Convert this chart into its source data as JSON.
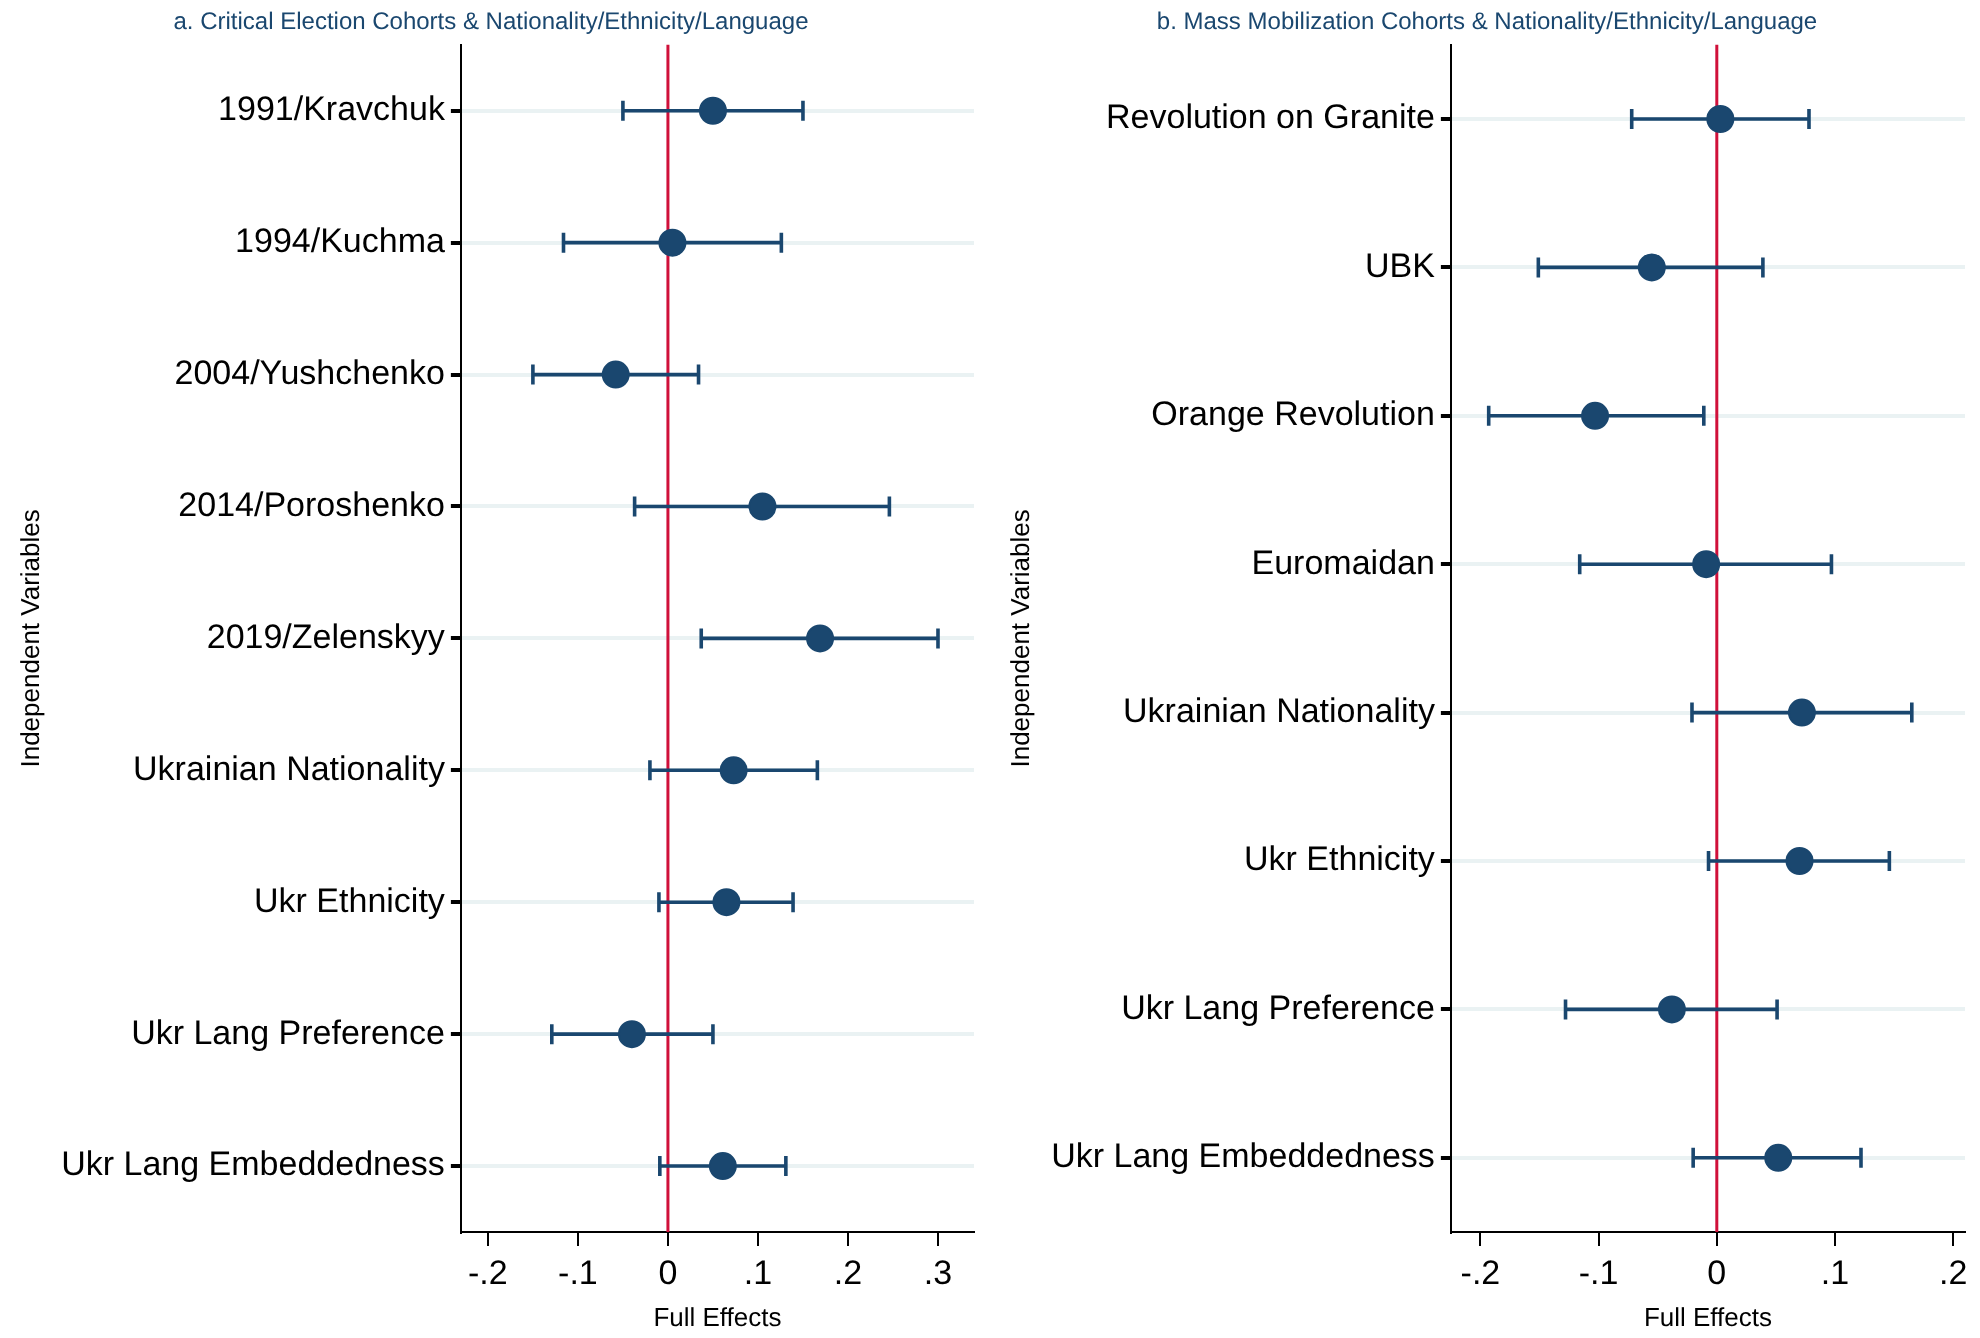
{
  "chart_data": [
    {
      "type": "scatter",
      "orientation": "horizontal",
      "title": "a. Critical Election Cohorts & Nationality/Ethnicity/Language",
      "xlabel": "Full Effects",
      "ylabel": "Independent Variables",
      "categories": [
        "1991/Kravchuk",
        "1994/Kuchma",
        "2004/Yushchenko",
        "2014/Poroshenko",
        "2019/Zelenskyy",
        "Ukrainian Nationality",
        "Ukr Ethnicity",
        "Ukr Lang Preference",
        "Ukr Lang Embeddedness"
      ],
      "series": [
        {
          "color": "#1a476f",
          "values": [
            0.05,
            0.005,
            -0.058,
            0.105,
            0.169,
            0.073,
            0.065,
            -0.04,
            0.061
          ],
          "errors": [
            [
              -0.05,
              0.15
            ],
            [
              -0.116,
              0.126
            ],
            [
              -0.15,
              0.034
            ],
            [
              -0.037,
              0.246
            ],
            [
              0.037,
              0.3
            ],
            [
              -0.02,
              0.166
            ],
            [
              -0.01,
              0.139
            ],
            [
              -0.129,
              0.05
            ],
            [
              -0.009,
              0.131
            ]
          ]
        }
      ],
      "xlim": [
        -0.23,
        0.34
      ],
      "xticks": [
        {
          "value": -0.2,
          "label": "-.2"
        },
        {
          "value": -0.1,
          "label": "-.1"
        },
        0,
        {
          "value": 0.1,
          "label": ".1"
        },
        {
          "value": 0.2,
          "label": ".2"
        },
        {
          "value": 0.3,
          "label": ".3"
        }
      ],
      "ref_lines": [
        {
          "axis": "x",
          "value": 0,
          "color": "#d0103a"
        }
      ],
      "grid": "y",
      "marker": "circle",
      "legend": false
    },
    {
      "type": "scatter",
      "orientation": "horizontal",
      "title": "b. Mass Mobilization Cohorts & Nationality/Ethnicity/Language",
      "xlabel": "Full Effects",
      "ylabel": "Independent Variables",
      "categories": [
        "Revolution on Granite",
        "UBK",
        "Orange Revolution",
        "Euromaidan",
        "Ukrainian Nationality",
        "Ukr Ethnicity",
        "Ukr Lang Preference",
        "Ukr Lang Embeddedness"
      ],
      "series": [
        {
          "color": "#1a476f",
          "values": [
            0.003,
            -0.055,
            -0.103,
            -0.009,
            0.072,
            0.07,
            -0.038,
            0.052
          ],
          "errors": [
            [
              -0.072,
              0.078
            ],
            [
              -0.151,
              0.039
            ],
            [
              -0.193,
              -0.011
            ],
            [
              -0.116,
              0.097
            ],
            [
              -0.021,
              0.165
            ],
            [
              -0.007,
              0.146
            ],
            [
              -0.128,
              0.051
            ],
            [
              -0.02,
              0.122
            ]
          ]
        }
      ],
      "xlim": [
        -0.225,
        0.21
      ],
      "xticks": [
        {
          "value": -0.2,
          "label": "-.2"
        },
        {
          "value": -0.1,
          "label": "-.1"
        },
        0,
        {
          "value": 0.1,
          "label": ".1"
        },
        {
          "value": 0.2,
          "label": ".2"
        }
      ],
      "ref_lines": [
        {
          "axis": "x",
          "value": 0,
          "color": "#d0103a"
        }
      ],
      "grid": "y",
      "marker": "circle",
      "legend": false
    }
  ]
}
